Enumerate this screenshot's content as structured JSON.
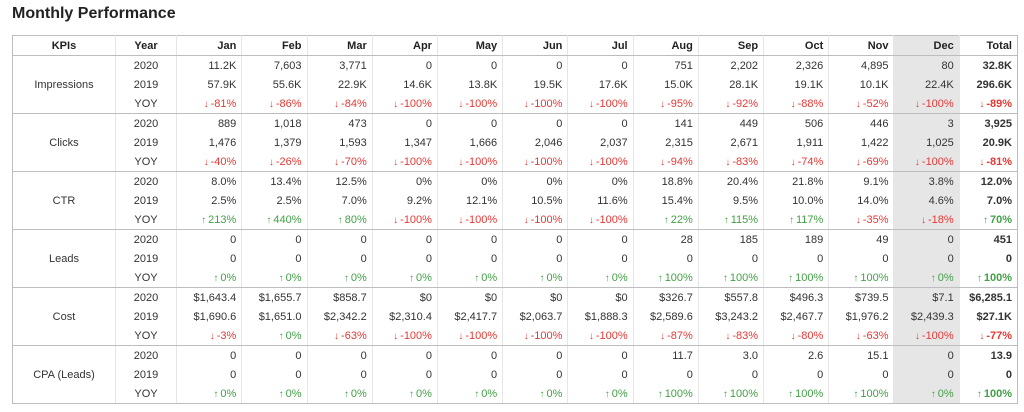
{
  "title": "Monthly Performance",
  "headers": [
    "KPIs",
    "Year",
    "Jan",
    "Feb",
    "Mar",
    "Apr",
    "May",
    "Jun",
    "Jul",
    "Aug",
    "Sep",
    "Oct",
    "Nov",
    "Dec",
    "Total"
  ],
  "kpis": [
    {
      "name": "Impressions",
      "rows": [
        {
          "year": "2020",
          "cells": [
            "11.2K",
            "7,603",
            "3,771",
            "0",
            "0",
            "0",
            "0",
            "751",
            "2,202",
            "2,326",
            "4,895",
            "80"
          ],
          "total": "32.8K"
        },
        {
          "year": "2019",
          "cells": [
            "57.9K",
            "55.6K",
            "22.9K",
            "14.6K",
            "13.8K",
            "19.5K",
            "17.6K",
            "15.0K",
            "28.1K",
            "19.1K",
            "10.1K",
            "22.4K"
          ],
          "total": "296.6K"
        },
        {
          "year": "YOY",
          "cells": [
            {
              "v": "-81%",
              "d": "down"
            },
            {
              "v": "-86%",
              "d": "down"
            },
            {
              "v": "-84%",
              "d": "down"
            },
            {
              "v": "-100%",
              "d": "down"
            },
            {
              "v": "-100%",
              "d": "down"
            },
            {
              "v": "-100%",
              "d": "down"
            },
            {
              "v": "-100%",
              "d": "down"
            },
            {
              "v": "-95%",
              "d": "down"
            },
            {
              "v": "-92%",
              "d": "down"
            },
            {
              "v": "-88%",
              "d": "down"
            },
            {
              "v": "-52%",
              "d": "down"
            },
            {
              "v": "-100%",
              "d": "down"
            }
          ],
          "total": {
            "v": "-89%",
            "d": "down"
          }
        }
      ]
    },
    {
      "name": "Clicks",
      "rows": [
        {
          "year": "2020",
          "cells": [
            "889",
            "1,018",
            "473",
            "0",
            "0",
            "0",
            "0",
            "141",
            "449",
            "506",
            "446",
            "3"
          ],
          "total": "3,925"
        },
        {
          "year": "2019",
          "cells": [
            "1,476",
            "1,379",
            "1,593",
            "1,347",
            "1,666",
            "2,046",
            "2,037",
            "2,315",
            "2,671",
            "1,911",
            "1,422",
            "1,025"
          ],
          "total": "20.9K"
        },
        {
          "year": "YOY",
          "cells": [
            {
              "v": "-40%",
              "d": "down"
            },
            {
              "v": "-26%",
              "d": "down"
            },
            {
              "v": "-70%",
              "d": "down"
            },
            {
              "v": "-100%",
              "d": "down"
            },
            {
              "v": "-100%",
              "d": "down"
            },
            {
              "v": "-100%",
              "d": "down"
            },
            {
              "v": "-100%",
              "d": "down"
            },
            {
              "v": "-94%",
              "d": "down"
            },
            {
              "v": "-83%",
              "d": "down"
            },
            {
              "v": "-74%",
              "d": "down"
            },
            {
              "v": "-69%",
              "d": "down"
            },
            {
              "v": "-100%",
              "d": "down"
            }
          ],
          "total": {
            "v": "-81%",
            "d": "down"
          }
        }
      ]
    },
    {
      "name": "CTR",
      "rows": [
        {
          "year": "2020",
          "cells": [
            "8.0%",
            "13.4%",
            "12.5%",
            "0%",
            "0%",
            "0%",
            "0%",
            "18.8%",
            "20.4%",
            "21.8%",
            "9.1%",
            "3.8%"
          ],
          "total": "12.0%"
        },
        {
          "year": "2019",
          "cells": [
            "2.5%",
            "2.5%",
            "7.0%",
            "9.2%",
            "12.1%",
            "10.5%",
            "11.6%",
            "15.4%",
            "9.5%",
            "10.0%",
            "14.0%",
            "4.6%"
          ],
          "total": "7.0%"
        },
        {
          "year": "YOY",
          "cells": [
            {
              "v": "213%",
              "d": "up"
            },
            {
              "v": "440%",
              "d": "up"
            },
            {
              "v": "80%",
              "d": "up"
            },
            {
              "v": "-100%",
              "d": "down"
            },
            {
              "v": "-100%",
              "d": "down"
            },
            {
              "v": "-100%",
              "d": "down"
            },
            {
              "v": "-100%",
              "d": "down"
            },
            {
              "v": "22%",
              "d": "up"
            },
            {
              "v": "115%",
              "d": "up"
            },
            {
              "v": "117%",
              "d": "up"
            },
            {
              "v": "-35%",
              "d": "down"
            },
            {
              "v": "-18%",
              "d": "down"
            }
          ],
          "total": {
            "v": "70%",
            "d": "up"
          }
        }
      ]
    },
    {
      "name": "Leads",
      "rows": [
        {
          "year": "2020",
          "cells": [
            "0",
            "0",
            "0",
            "0",
            "0",
            "0",
            "0",
            "28",
            "185",
            "189",
            "49",
            "0"
          ],
          "total": "451"
        },
        {
          "year": "2019",
          "cells": [
            "0",
            "0",
            "0",
            "0",
            "0",
            "0",
            "0",
            "0",
            "0",
            "0",
            "0",
            "0"
          ],
          "total": "0"
        },
        {
          "year": "YOY",
          "cells": [
            {
              "v": "0%",
              "d": "up"
            },
            {
              "v": "0%",
              "d": "up"
            },
            {
              "v": "0%",
              "d": "up"
            },
            {
              "v": "0%",
              "d": "up"
            },
            {
              "v": "0%",
              "d": "up"
            },
            {
              "v": "0%",
              "d": "up"
            },
            {
              "v": "0%",
              "d": "up"
            },
            {
              "v": "100%",
              "d": "up"
            },
            {
              "v": "100%",
              "d": "up"
            },
            {
              "v": "100%",
              "d": "up"
            },
            {
              "v": "100%",
              "d": "up"
            },
            {
              "v": "0%",
              "d": "up"
            }
          ],
          "total": {
            "v": "100%",
            "d": "up"
          }
        }
      ]
    },
    {
      "name": "Cost",
      "rows": [
        {
          "year": "2020",
          "cells": [
            "$1,643.4",
            "$1,655.7",
            "$858.7",
            "$0",
            "$0",
            "$0",
            "$0",
            "$326.7",
            "$557.8",
            "$496.3",
            "$739.5",
            "$7.1"
          ],
          "total": "$6,285.1"
        },
        {
          "year": "2019",
          "cells": [
            "$1,690.6",
            "$1,651.0",
            "$2,342.2",
            "$2,310.4",
            "$2,417.7",
            "$2,063.7",
            "$1,888.3",
            "$2,589.6",
            "$3,243.2",
            "$2,467.7",
            "$1,976.2",
            "$2,439.3"
          ],
          "total": "$27.1K"
        },
        {
          "year": "YOY",
          "cells": [
            {
              "v": "-3%",
              "d": "down"
            },
            {
              "v": "0%",
              "d": "up"
            },
            {
              "v": "-63%",
              "d": "down"
            },
            {
              "v": "-100%",
              "d": "down"
            },
            {
              "v": "-100%",
              "d": "down"
            },
            {
              "v": "-100%",
              "d": "down"
            },
            {
              "v": "-100%",
              "d": "down"
            },
            {
              "v": "-87%",
              "d": "down"
            },
            {
              "v": "-83%",
              "d": "down"
            },
            {
              "v": "-80%",
              "d": "down"
            },
            {
              "v": "-63%",
              "d": "down"
            },
            {
              "v": "-100%",
              "d": "down"
            }
          ],
          "total": {
            "v": "-77%",
            "d": "down"
          }
        }
      ]
    },
    {
      "name": "CPA (Leads)",
      "rows": [
        {
          "year": "2020",
          "cells": [
            "0",
            "0",
            "0",
            "0",
            "0",
            "0",
            "0",
            "11.7",
            "3.0",
            "2.6",
            "15.1",
            "0"
          ],
          "total": "13.9"
        },
        {
          "year": "2019",
          "cells": [
            "0",
            "0",
            "0",
            "0",
            "0",
            "0",
            "0",
            "0",
            "0",
            "0",
            "0",
            "0"
          ],
          "total": "0"
        },
        {
          "year": "YOY",
          "cells": [
            {
              "v": "0%",
              "d": "up"
            },
            {
              "v": "0%",
              "d": "up"
            },
            {
              "v": "0%",
              "d": "up"
            },
            {
              "v": "0%",
              "d": "up"
            },
            {
              "v": "0%",
              "d": "up"
            },
            {
              "v": "0%",
              "d": "up"
            },
            {
              "v": "0%",
              "d": "up"
            },
            {
              "v": "100%",
              "d": "up"
            },
            {
              "v": "100%",
              "d": "up"
            },
            {
              "v": "100%",
              "d": "up"
            },
            {
              "v": "100%",
              "d": "up"
            },
            {
              "v": "0%",
              "d": "up"
            }
          ],
          "total": {
            "v": "100%",
            "d": "up"
          }
        }
      ]
    }
  ],
  "colors": {
    "down": "#e53935",
    "up": "#43a047",
    "highlight": "#e6e6e6"
  },
  "icons": {
    "down": "arrow-down-icon",
    "up": "arrow-up-icon"
  }
}
